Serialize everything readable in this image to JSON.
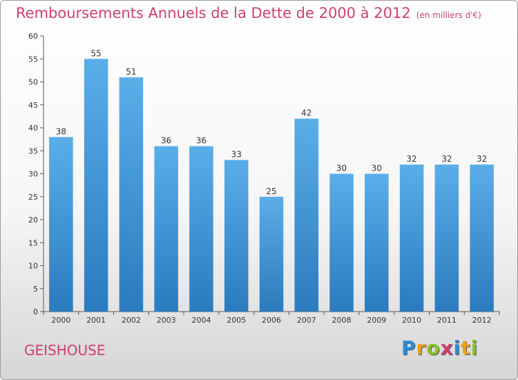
{
  "title": "Remboursements Annuels de la Dette de 2000 à 2012",
  "unit": "(en milliers d'€)",
  "commune": "GEISHOUSE",
  "logo": {
    "letters": [
      "P",
      "r",
      "o",
      "x",
      "i",
      "t",
      "i"
    ],
    "colors": [
      "#2d8cd6",
      "#e8a21d",
      "#8bbf2b",
      "#d0406d",
      "#2d8cd6",
      "#e8a21d",
      "#8bbf2b"
    ]
  },
  "colors": {
    "bar_light": "#5aaee8",
    "bar_dark": "#2a7bbf",
    "title": "#d0406d"
  },
  "chart_data": {
    "type": "bar",
    "title": "Remboursements Annuels de la Dette de 2000 à 2012",
    "categories": [
      "2000",
      "2001",
      "2002",
      "2003",
      "2004",
      "2005",
      "2006",
      "2007",
      "2008",
      "2009",
      "2010",
      "2011",
      "2012"
    ],
    "values": [
      38,
      55,
      51,
      36,
      36,
      33,
      25,
      42,
      30,
      30,
      32,
      32,
      32
    ],
    "ylim": [
      0,
      60
    ],
    "yticks": [
      0,
      5,
      10,
      15,
      20,
      25,
      30,
      35,
      40,
      45,
      50,
      55,
      60
    ],
    "grid": false,
    "data_labels": true
  }
}
